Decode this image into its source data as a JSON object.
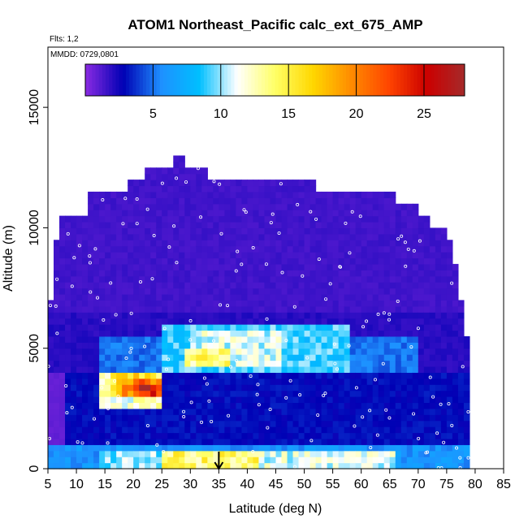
{
  "chart_data": {
    "type": "heatmap",
    "title": "ATOM1 Northeast_Pacific calc_ext_675_AMP",
    "flights_note": "Flts: 1,2",
    "dates_note": "MMDD: 0729,0801",
    "xlabel": "Latitude (deg N)",
    "ylabel": "Altitude (m)",
    "xlim": [
      5,
      85
    ],
    "ylim": [
      0,
      17500
    ],
    "x_ticks": [
      5,
      10,
      15,
      20,
      25,
      30,
      35,
      40,
      45,
      50,
      55,
      60,
      65,
      70,
      75,
      80,
      85
    ],
    "y_ticks": [
      0,
      5000,
      10000,
      15000
    ],
    "colorbar": {
      "range": [
        0,
        28
      ],
      "ticks": [
        5,
        10,
        15,
        20,
        25
      ],
      "colors": [
        "#8a2be2",
        "#0000b4",
        "#1e90ff",
        "#00bfff",
        "#ffffff",
        "#ffff66",
        "#ffd700",
        "#ff8c00",
        "#ff4500",
        "#cc0000",
        "#a52a2a"
      ]
    },
    "marker_latitude": 35,
    "coverage": [
      {
        "lat": 5,
        "alt_max": 7000
      },
      {
        "lat": 6,
        "alt_max": 9500
      },
      {
        "lat": 7,
        "alt_max": 10500
      },
      {
        "lat": 12,
        "alt_max": 11500
      },
      {
        "lat": 19,
        "alt_max": 12000
      },
      {
        "lat": 22,
        "alt_max": 12500
      },
      {
        "lat": 27,
        "alt_max": 13000
      },
      {
        "lat": 29,
        "alt_max": 12500
      },
      {
        "lat": 33,
        "alt_max": 12000
      },
      {
        "lat": 36,
        "alt_max": 12000
      },
      {
        "lat": 41,
        "alt_max": 12000
      },
      {
        "lat": 49,
        "alt_max": 12000
      },
      {
        "lat": 52,
        "alt_max": 11500
      },
      {
        "lat": 62,
        "alt_max": 11500
      },
      {
        "lat": 66,
        "alt_max": 11000
      },
      {
        "lat": 70,
        "alt_max": 10500
      },
      {
        "lat": 72,
        "alt_max": 10000
      },
      {
        "lat": 75,
        "alt_max": 9500
      },
      {
        "lat": 76,
        "alt_max": 8500
      },
      {
        "lat": 77,
        "alt_max": 7000
      },
      {
        "lat": 78,
        "alt_max": 5500
      },
      {
        "lat": 79,
        "alt_max": 0
      }
    ],
    "features": [
      {
        "lat_min": 5,
        "lat_max": 79,
        "alt_min": 6500,
        "alt_max": 13000,
        "value": 1.5
      },
      {
        "lat_min": 5,
        "lat_max": 79,
        "alt_min": 4000,
        "alt_max": 6500,
        "value": 2
      },
      {
        "lat_min": 14,
        "lat_max": 70,
        "alt_min": 4000,
        "alt_max": 5600,
        "value": 5
      },
      {
        "lat_min": 25,
        "lat_max": 58,
        "alt_min": 4000,
        "alt_max": 6000,
        "value": 9
      },
      {
        "lat_min": 30,
        "lat_max": 46,
        "alt_min": 4300,
        "alt_max": 5800,
        "value": 11
      },
      {
        "lat_min": 29,
        "lat_max": 37,
        "alt_min": 4300,
        "alt_max": 5000,
        "value": 14
      },
      {
        "lat_min": 8,
        "lat_max": 79,
        "alt_min": 500,
        "alt_max": 4000,
        "value": 3
      },
      {
        "lat_min": 14,
        "lat_max": 25,
        "alt_min": 2600,
        "alt_max": 4000,
        "value": 12
      },
      {
        "lat_min": 16,
        "lat_max": 24,
        "alt_min": 2900,
        "alt_max": 3900,
        "value": 16
      },
      {
        "lat_min": 18,
        "lat_max": 25,
        "alt_min": 3000,
        "alt_max": 3800,
        "value": 20
      },
      {
        "lat_min": 21,
        "lat_max": 24,
        "alt_min": 2900,
        "alt_max": 3500,
        "value": 26
      },
      {
        "lat_min": 5,
        "lat_max": 79,
        "alt_min": 0,
        "alt_max": 900,
        "value": 6
      },
      {
        "lat_min": 14,
        "lat_max": 55,
        "alt_min": 0,
        "alt_max": 750,
        "value": 10
      },
      {
        "lat_min": 25,
        "lat_max": 42,
        "alt_min": 0,
        "alt_max": 650,
        "value": 14
      },
      {
        "lat_min": 42,
        "lat_max": 66,
        "alt_min": 0,
        "alt_max": 650,
        "value": 11
      }
    ]
  }
}
